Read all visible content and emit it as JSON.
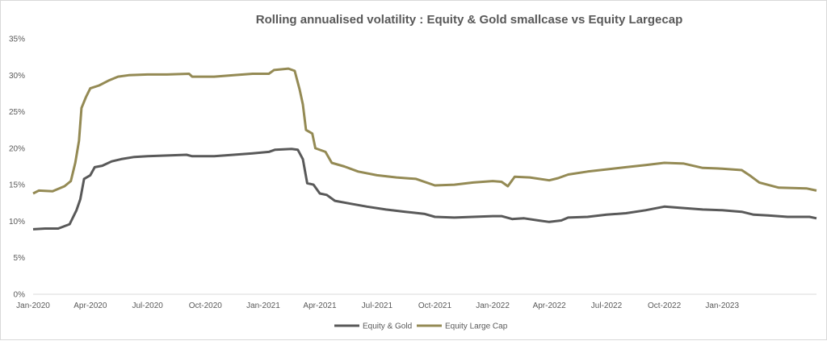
{
  "chart_data": {
    "type": "line",
    "title": "Rolling annualised volatility : Equity & Gold smallcase vs Equity Largecap",
    "xlabel": "",
    "ylabel": "",
    "y_ticks": [
      "0%",
      "5%",
      "10%",
      "15%",
      "20%",
      "25%",
      "30%",
      "35%"
    ],
    "ylim": [
      0,
      35
    ],
    "x_ticks": [
      "Jan-2020",
      "Apr-2020",
      "Jul-2020",
      "Oct-2020",
      "Jan-2021",
      "Apr-2021",
      "Jul-2021",
      "Oct-2021",
      "Jan-2022",
      "Apr-2022",
      "Jul-2022",
      "Oct-2022",
      "Jan-2023"
    ],
    "xlim": [
      "2020-01-01",
      "2023-05-31"
    ],
    "grid": false,
    "legend": "bottom-center",
    "series": [
      {
        "name": "Equity & Gold",
        "color": "#595959",
        "points": [
          [
            "2020-01-01",
            8.9
          ],
          [
            "2020-01-20",
            9.0
          ],
          [
            "2020-02-10",
            9.0
          ],
          [
            "2020-02-28",
            9.6
          ],
          [
            "2020-03-10",
            11.5
          ],
          [
            "2020-03-16",
            13.0
          ],
          [
            "2020-03-22",
            15.8
          ],
          [
            "2020-04-01",
            16.3
          ],
          [
            "2020-04-08",
            17.4
          ],
          [
            "2020-04-20",
            17.6
          ],
          [
            "2020-05-05",
            18.2
          ],
          [
            "2020-05-20",
            18.5
          ],
          [
            "2020-06-10",
            18.8
          ],
          [
            "2020-07-01",
            18.9
          ],
          [
            "2020-08-01",
            19.0
          ],
          [
            "2020-09-01",
            19.1
          ],
          [
            "2020-09-10",
            18.9
          ],
          [
            "2020-10-15",
            18.9
          ],
          [
            "2020-11-15",
            19.1
          ],
          [
            "2020-12-15",
            19.3
          ],
          [
            "2021-01-10",
            19.5
          ],
          [
            "2021-01-20",
            19.8
          ],
          [
            "2021-02-15",
            19.9
          ],
          [
            "2021-02-25",
            19.8
          ],
          [
            "2021-03-05",
            18.5
          ],
          [
            "2021-03-12",
            15.2
          ],
          [
            "2021-03-22",
            15.0
          ],
          [
            "2021-04-01",
            13.8
          ],
          [
            "2021-04-12",
            13.6
          ],
          [
            "2021-04-25",
            12.8
          ],
          [
            "2021-05-20",
            12.4
          ],
          [
            "2021-06-15",
            12.0
          ],
          [
            "2021-07-15",
            11.6
          ],
          [
            "2021-08-15",
            11.3
          ],
          [
            "2021-09-15",
            11.0
          ],
          [
            "2021-10-01",
            10.6
          ],
          [
            "2021-11-01",
            10.5
          ],
          [
            "2021-12-01",
            10.6
          ],
          [
            "2022-01-01",
            10.7
          ],
          [
            "2022-01-15",
            10.7
          ],
          [
            "2022-02-01",
            10.3
          ],
          [
            "2022-02-20",
            10.4
          ],
          [
            "2022-03-15",
            10.1
          ],
          [
            "2022-04-01",
            9.9
          ],
          [
            "2022-04-20",
            10.1
          ],
          [
            "2022-05-01",
            10.5
          ],
          [
            "2022-06-01",
            10.6
          ],
          [
            "2022-07-01",
            10.9
          ],
          [
            "2022-08-01",
            11.1
          ],
          [
            "2022-09-01",
            11.5
          ],
          [
            "2022-10-01",
            12.0
          ],
          [
            "2022-11-01",
            11.8
          ],
          [
            "2022-12-01",
            11.6
          ],
          [
            "2023-01-01",
            11.5
          ],
          [
            "2023-02-01",
            11.3
          ],
          [
            "2023-02-20",
            10.9
          ],
          [
            "2023-03-15",
            10.8
          ],
          [
            "2023-04-15",
            10.6
          ],
          [
            "2023-05-20",
            10.6
          ],
          [
            "2023-05-31",
            10.4
          ]
        ]
      },
      {
        "name": "Equity Large Cap",
        "color": "#948a54",
        "points": [
          [
            "2020-01-01",
            13.8
          ],
          [
            "2020-01-10",
            14.2
          ],
          [
            "2020-02-01",
            14.1
          ],
          [
            "2020-02-20",
            14.8
          ],
          [
            "2020-03-01",
            15.5
          ],
          [
            "2020-03-08",
            18.0
          ],
          [
            "2020-03-14",
            21.0
          ],
          [
            "2020-03-18",
            25.5
          ],
          [
            "2020-03-25",
            27.0
          ],
          [
            "2020-04-01",
            28.2
          ],
          [
            "2020-04-15",
            28.6
          ],
          [
            "2020-05-01",
            29.3
          ],
          [
            "2020-05-15",
            29.8
          ],
          [
            "2020-06-01",
            30.0
          ],
          [
            "2020-07-01",
            30.1
          ],
          [
            "2020-08-01",
            30.1
          ],
          [
            "2020-09-05",
            30.2
          ],
          [
            "2020-09-10",
            29.8
          ],
          [
            "2020-10-15",
            29.8
          ],
          [
            "2020-11-15",
            30.0
          ],
          [
            "2020-12-15",
            30.2
          ],
          [
            "2021-01-10",
            30.2
          ],
          [
            "2021-01-18",
            30.7
          ],
          [
            "2021-02-10",
            30.9
          ],
          [
            "2021-02-20",
            30.6
          ],
          [
            "2021-02-28",
            28.0
          ],
          [
            "2021-03-05",
            26.0
          ],
          [
            "2021-03-10",
            22.5
          ],
          [
            "2021-03-20",
            22.0
          ],
          [
            "2021-03-25",
            20.0
          ],
          [
            "2021-04-10",
            19.5
          ],
          [
            "2021-04-20",
            18.0
          ],
          [
            "2021-05-10",
            17.5
          ],
          [
            "2021-06-01",
            16.8
          ],
          [
            "2021-07-01",
            16.3
          ],
          [
            "2021-08-01",
            16.0
          ],
          [
            "2021-09-01",
            15.8
          ],
          [
            "2021-10-01",
            14.9
          ],
          [
            "2021-11-01",
            15.0
          ],
          [
            "2021-12-01",
            15.3
          ],
          [
            "2022-01-01",
            15.5
          ],
          [
            "2022-01-15",
            15.4
          ],
          [
            "2022-01-25",
            14.8
          ],
          [
            "2022-02-05",
            16.1
          ],
          [
            "2022-03-01",
            16.0
          ],
          [
            "2022-04-01",
            15.6
          ],
          [
            "2022-04-15",
            15.9
          ],
          [
            "2022-05-01",
            16.4
          ],
          [
            "2022-06-01",
            16.8
          ],
          [
            "2022-07-01",
            17.1
          ],
          [
            "2022-08-01",
            17.4
          ],
          [
            "2022-09-01",
            17.7
          ],
          [
            "2022-10-01",
            18.0
          ],
          [
            "2022-11-01",
            17.9
          ],
          [
            "2022-12-01",
            17.3
          ],
          [
            "2023-01-01",
            17.2
          ],
          [
            "2023-02-01",
            17.0
          ],
          [
            "2023-02-15",
            16.2
          ],
          [
            "2023-03-01",
            15.3
          ],
          [
            "2023-04-01",
            14.6
          ],
          [
            "2023-05-15",
            14.5
          ],
          [
            "2023-05-31",
            14.2
          ]
        ]
      }
    ]
  }
}
